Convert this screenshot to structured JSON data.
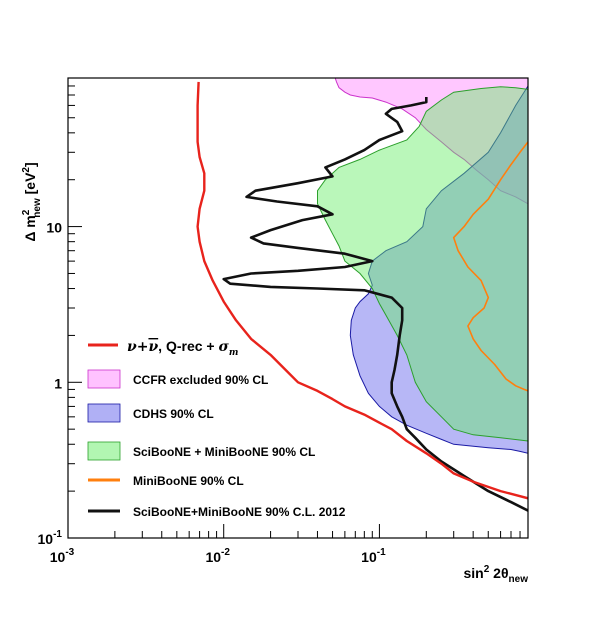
{
  "chart_data": {
    "type": "area",
    "title": "",
    "xlabel": {
      "base": "sin",
      "sup": "2",
      "mid": " 2θ",
      "sub": "new"
    },
    "ylabel": {
      "pre": "Δ m",
      "sup": "2",
      "sub": "new",
      "post": " [eV",
      "sup2": "2",
      "end": "]"
    },
    "xscale": "log",
    "yscale": "log",
    "xlim": [
      0.001,
      0.9
    ],
    "ylim": [
      0.1,
      90
    ],
    "xticks": [
      {
        "value": 0.001,
        "base": "10",
        "exp": "-3"
      },
      {
        "value": 0.01,
        "base": "10",
        "exp": "-2"
      },
      {
        "value": 0.1,
        "base": "10",
        "exp": "-1"
      }
    ],
    "yticks": [
      {
        "value": 0.1,
        "base": "10",
        "exp": "-1"
      },
      {
        "value": 1,
        "label": "1"
      },
      {
        "value": 10,
        "label": "10"
      }
    ],
    "grid": false,
    "legend_position": "bottom-left",
    "series": [
      {
        "id": "ccfr",
        "name": "CCFR excluded 90% CL",
        "kind": "region",
        "color": "#ff99ff",
        "stroke": "#cc33cc",
        "opacity": 0.55,
        "boundary": [
          [
            0.9,
            14
          ],
          [
            0.75,
            15.5
          ],
          [
            0.6,
            17
          ],
          [
            0.5,
            20
          ],
          [
            0.42,
            23
          ],
          [
            0.35,
            27
          ],
          [
            0.3,
            30
          ],
          [
            0.25,
            35
          ],
          [
            0.2,
            42
          ],
          [
            0.17,
            50
          ],
          [
            0.14,
            57
          ],
          [
            0.11,
            63
          ],
          [
            0.09,
            67
          ],
          [
            0.075,
            68
          ],
          [
            0.065,
            70
          ],
          [
            0.06,
            73
          ],
          [
            0.055,
            78
          ],
          [
            0.053,
            85
          ],
          [
            0.052,
            90
          ],
          [
            0.9,
            90
          ]
        ]
      },
      {
        "id": "cdhs",
        "name": "CDHS 90% CL",
        "kind": "region",
        "color": "#7b7bef",
        "stroke": "#1a1aa5",
        "opacity": 0.55,
        "boundary": [
          [
            0.9,
            0.35
          ],
          [
            0.8,
            0.36
          ],
          [
            0.7,
            0.37
          ],
          [
            0.5,
            0.38
          ],
          [
            0.3,
            0.4
          ],
          [
            0.25,
            0.43
          ],
          [
            0.2,
            0.47
          ],
          [
            0.15,
            0.53
          ],
          [
            0.12,
            0.6
          ],
          [
            0.1,
            0.7
          ],
          [
            0.085,
            0.85
          ],
          [
            0.075,
            1.1
          ],
          [
            0.068,
            1.5
          ],
          [
            0.065,
            2
          ],
          [
            0.066,
            2.5
          ],
          [
            0.07,
            3
          ],
          [
            0.075,
            3.3
          ],
          [
            0.085,
            3.7
          ],
          [
            0.09,
            4.2
          ],
          [
            0.085,
            5
          ],
          [
            0.09,
            6
          ],
          [
            0.11,
            7
          ],
          [
            0.15,
            8
          ],
          [
            0.19,
            10
          ],
          [
            0.2,
            13
          ],
          [
            0.25,
            17
          ],
          [
            0.35,
            22
          ],
          [
            0.5,
            30
          ],
          [
            0.6,
            40
          ],
          [
            0.75,
            60
          ],
          [
            0.9,
            80
          ]
        ]
      },
      {
        "id": "sbmb",
        "name": "SciBooNE + MiniBooNE 90% CL",
        "kind": "region",
        "color": "#66ee66",
        "stroke": "#2ca02c",
        "opacity": 0.45,
        "boundary": [
          [
            0.9,
            0.42
          ],
          [
            0.6,
            0.44
          ],
          [
            0.4,
            0.46
          ],
          [
            0.3,
            0.5
          ],
          [
            0.25,
            0.6
          ],
          [
            0.2,
            0.75
          ],
          [
            0.17,
            1
          ],
          [
            0.15,
            1.5
          ],
          [
            0.13,
            2
          ],
          [
            0.11,
            2.7
          ],
          [
            0.1,
            3.2
          ],
          [
            0.09,
            4
          ],
          [
            0.075,
            5
          ],
          [
            0.06,
            6
          ],
          [
            0.055,
            7.5
          ],
          [
            0.05,
            9
          ],
          [
            0.045,
            11
          ],
          [
            0.04,
            14
          ],
          [
            0.04,
            17
          ],
          [
            0.045,
            20
          ],
          [
            0.055,
            24
          ],
          [
            0.075,
            27
          ],
          [
            0.1,
            31
          ],
          [
            0.15,
            36
          ],
          [
            0.18,
            44
          ],
          [
            0.2,
            55
          ],
          [
            0.25,
            65
          ],
          [
            0.3,
            73
          ],
          [
            0.45,
            77
          ],
          [
            0.6,
            79
          ],
          [
            0.75,
            78
          ],
          [
            0.9,
            76
          ]
        ]
      },
      {
        "id": "mb",
        "name": "MiniBooNE 90% CL",
        "kind": "line",
        "color": "#ff7f0e",
        "width": 1.6,
        "points": [
          [
            0.9,
            35
          ],
          [
            0.8,
            30
          ],
          [
            0.7,
            25
          ],
          [
            0.6,
            20
          ],
          [
            0.5,
            15
          ],
          [
            0.4,
            12
          ],
          [
            0.35,
            10
          ],
          [
            0.3,
            8.5
          ],
          [
            0.32,
            7
          ],
          [
            0.37,
            5.5
          ],
          [
            0.45,
            4.5
          ],
          [
            0.5,
            3.5
          ],
          [
            0.47,
            3
          ],
          [
            0.4,
            2.6
          ],
          [
            0.37,
            2.3
          ],
          [
            0.4,
            1.9
          ],
          [
            0.45,
            1.6
          ],
          [
            0.55,
            1.3
          ],
          [
            0.65,
            1.05
          ],
          [
            0.75,
            0.95
          ],
          [
            0.85,
            0.9
          ],
          [
            0.9,
            0.88
          ]
        ]
      },
      {
        "id": "sens",
        "name": "SciBooNE+MiniBooNE 90% C.L. 2012",
        "kind": "line",
        "color": "#111111",
        "width": 2.6,
        "points": [
          [
            0.9,
            0.15
          ],
          [
            0.7,
            0.17
          ],
          [
            0.5,
            0.2
          ],
          [
            0.35,
            0.25
          ],
          [
            0.25,
            0.31
          ],
          [
            0.2,
            0.37
          ],
          [
            0.17,
            0.44
          ],
          [
            0.15,
            0.5
          ],
          [
            0.14,
            0.6
          ],
          [
            0.13,
            0.7
          ],
          [
            0.12,
            0.85
          ],
          [
            0.12,
            1
          ],
          [
            0.125,
            1.2
          ],
          [
            0.13,
            1.5
          ],
          [
            0.135,
            2
          ],
          [
            0.14,
            2.5
          ],
          [
            0.14,
            3
          ],
          [
            0.12,
            3.5
          ],
          [
            0.08,
            3.9
          ],
          [
            0.04,
            4
          ],
          [
            0.02,
            4.1
          ],
          [
            0.011,
            4.3
          ],
          [
            0.01,
            4.6
          ],
          [
            0.015,
            5
          ],
          [
            0.03,
            5.2
          ],
          [
            0.06,
            5.5
          ],
          [
            0.09,
            6
          ],
          [
            0.06,
            6.7
          ],
          [
            0.03,
            7.3
          ],
          [
            0.018,
            7.8
          ],
          [
            0.015,
            8.5
          ],
          [
            0.02,
            9.5
          ],
          [
            0.032,
            11
          ],
          [
            0.05,
            12
          ],
          [
            0.04,
            13.5
          ],
          [
            0.022,
            14.5
          ],
          [
            0.014,
            15.5
          ],
          [
            0.016,
            17
          ],
          [
            0.03,
            19
          ],
          [
            0.05,
            21
          ],
          [
            0.045,
            24
          ],
          [
            0.06,
            27
          ],
          [
            0.08,
            31
          ],
          [
            0.1,
            36
          ],
          [
            0.14,
            41
          ],
          [
            0.13,
            47
          ],
          [
            0.11,
            53
          ],
          [
            0.12,
            57
          ],
          [
            0.16,
            60
          ],
          [
            0.2,
            63
          ],
          [
            0.2,
            68
          ]
        ]
      },
      {
        "id": "nu",
        "name_parts": [
          "ν+",
          "ν",
          ", Q-rec + ",
          "σ",
          "m"
        ],
        "kind": "line",
        "color": "#e8231c",
        "width": 2.4,
        "points": [
          [
            0.9,
            0.18
          ],
          [
            0.6,
            0.2
          ],
          [
            0.4,
            0.23
          ],
          [
            0.3,
            0.26
          ],
          [
            0.25,
            0.3
          ],
          [
            0.2,
            0.35
          ],
          [
            0.15,
            0.42
          ],
          [
            0.12,
            0.5
          ],
          [
            0.1,
            0.55
          ],
          [
            0.08,
            0.62
          ],
          [
            0.06,
            0.7
          ],
          [
            0.05,
            0.78
          ],
          [
            0.04,
            0.88
          ],
          [
            0.03,
            1
          ],
          [
            0.025,
            1.2
          ],
          [
            0.02,
            1.5
          ],
          [
            0.015,
            1.9
          ],
          [
            0.012,
            2.5
          ],
          [
            0.01,
            3.3
          ],
          [
            0.0085,
            4.5
          ],
          [
            0.0075,
            6
          ],
          [
            0.007,
            8
          ],
          [
            0.0068,
            10
          ],
          [
            0.007,
            13
          ],
          [
            0.0075,
            17
          ],
          [
            0.0075,
            22
          ],
          [
            0.007,
            28
          ],
          [
            0.0068,
            35
          ],
          [
            0.0068,
            45
          ],
          [
            0.0068,
            60
          ],
          [
            0.0069,
            85
          ]
        ]
      }
    ]
  }
}
